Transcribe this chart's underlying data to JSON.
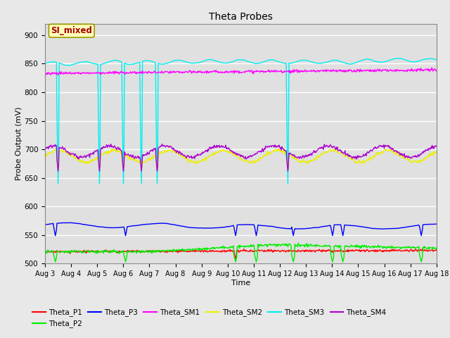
{
  "title": "Theta Probes",
  "xlabel": "Time",
  "ylabel": "Probe Output (mV)",
  "ylim": [
    500,
    920
  ],
  "yticks": [
    500,
    550,
    600,
    650,
    700,
    750,
    800,
    850,
    900
  ],
  "date_labels": [
    "Aug 3",
    "Aug 4",
    "Aug 5",
    "Aug 6",
    "Aug 7",
    "Aug 8",
    "Aug 9",
    "Aug 10",
    "Aug 11",
    "Aug 12",
    "Aug 13",
    "Aug 14",
    "Aug 15",
    "Aug 16",
    "Aug 17",
    "Aug 18"
  ],
  "colors": {
    "Theta_P1": "#ff0000",
    "Theta_P2": "#00ee00",
    "Theta_P3": "#0000ff",
    "Theta_SM1": "#ff00ff",
    "Theta_SM2": "#eeee00",
    "Theta_SM3": "#00eeee",
    "Theta_SM4": "#aa00cc"
  },
  "annotation_text": "SI_mixed",
  "annotation_color": "#aa0000",
  "annotation_bg": "#ffffbb",
  "fig_bg": "#e8e8e8",
  "plot_bg": "#e0e0e0",
  "grid_color": "#ffffff",
  "spine_color": "#888888"
}
